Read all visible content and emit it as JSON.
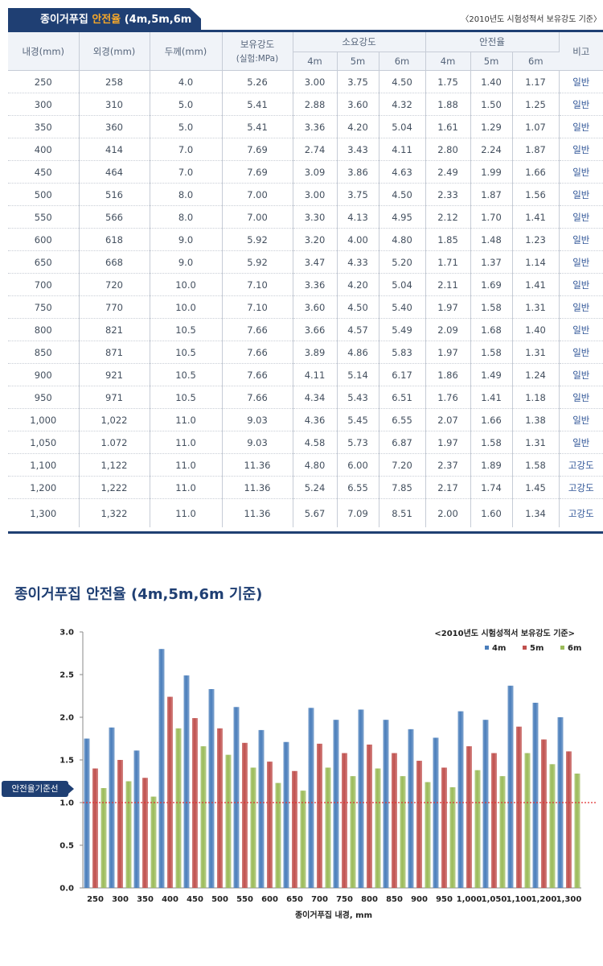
{
  "header": {
    "title_main": "종이거푸집 ",
    "title_highlight": "안전율",
    "title_suffix": " (4m,5m,6m 기준)",
    "note": "〈2010년도 시험성적서 보유강도 기준〉"
  },
  "table": {
    "headers": {
      "inner": "내경(mm)",
      "outer": "외경(mm)",
      "thickness": "두께(mm)",
      "strength": "보유강도",
      "strength_sub": "(실험:MPa)",
      "required": "소요강도",
      "safety": "안전율",
      "remark": "비고",
      "h4": "4m",
      "h5": "5m",
      "h6": "6m"
    },
    "rows": [
      [
        "250",
        "258",
        "4.0",
        "5.26",
        "3.00",
        "3.75",
        "4.50",
        "1.75",
        "1.40",
        "1.17",
        "일반"
      ],
      [
        "300",
        "310",
        "5.0",
        "5.41",
        "2.88",
        "3.60",
        "4.32",
        "1.88",
        "1.50",
        "1.25",
        "일반"
      ],
      [
        "350",
        "360",
        "5.0",
        "5.41",
        "3.36",
        "4.20",
        "5.04",
        "1.61",
        "1.29",
        "1.07",
        "일반"
      ],
      [
        "400",
        "414",
        "7.0",
        "7.69",
        "2.74",
        "3.43",
        "4.11",
        "2.80",
        "2.24",
        "1.87",
        "일반"
      ],
      [
        "450",
        "464",
        "7.0",
        "7.69",
        "3.09",
        "3.86",
        "4.63",
        "2.49",
        "1.99",
        "1.66",
        "일반"
      ],
      [
        "500",
        "516",
        "8.0",
        "7.00",
        "3.00",
        "3.75",
        "4.50",
        "2.33",
        "1.87",
        "1.56",
        "일반"
      ],
      [
        "550",
        "566",
        "8.0",
        "7.00",
        "3.30",
        "4.13",
        "4.95",
        "2.12",
        "1.70",
        "1.41",
        "일반"
      ],
      [
        "600",
        "618",
        "9.0",
        "5.92",
        "3.20",
        "4.00",
        "4.80",
        "1.85",
        "1.48",
        "1.23",
        "일반"
      ],
      [
        "650",
        "668",
        "9.0",
        "5.92",
        "3.47",
        "4.33",
        "5.20",
        "1.71",
        "1.37",
        "1.14",
        "일반"
      ],
      [
        "700",
        "720",
        "10.0",
        "7.10",
        "3.36",
        "4.20",
        "5.04",
        "2.11",
        "1.69",
        "1.41",
        "일반"
      ],
      [
        "750",
        "770",
        "10.0",
        "7.10",
        "3.60",
        "4.50",
        "5.40",
        "1.97",
        "1.58",
        "1.31",
        "일반"
      ],
      [
        "800",
        "821",
        "10.5",
        "7.66",
        "3.66",
        "4.57",
        "5.49",
        "2.09",
        "1.68",
        "1.40",
        "일반"
      ],
      [
        "850",
        "871",
        "10.5",
        "7.66",
        "3.89",
        "4.86",
        "5.83",
        "1.97",
        "1.58",
        "1.31",
        "일반"
      ],
      [
        "900",
        "921",
        "10.5",
        "7.66",
        "4.11",
        "5.14",
        "6.17",
        "1.86",
        "1.49",
        "1.24",
        "일반"
      ],
      [
        "950",
        "971",
        "10.5",
        "7.66",
        "4.34",
        "5.43",
        "6.51",
        "1.76",
        "1.41",
        "1.18",
        "일반"
      ],
      [
        "1,000",
        "1,022",
        "11.0",
        "9.03",
        "4.36",
        "5.45",
        "6.55",
        "2.07",
        "1.66",
        "1.38",
        "일반"
      ],
      [
        "1,050",
        "1.072",
        "11.0",
        "9.03",
        "4.58",
        "5.73",
        "6.87",
        "1.97",
        "1.58",
        "1.31",
        "일반"
      ],
      [
        "1,100",
        "1,122",
        "11.0",
        "11.36",
        "4.80",
        "6.00",
        "7.20",
        "2.37",
        "1.89",
        "1.58",
        "고강도"
      ],
      [
        "1,200",
        "1,222",
        "11.0",
        "11.36",
        "5.24",
        "6.55",
        "7.85",
        "2.17",
        "1.74",
        "1.45",
        "고강도"
      ],
      [
        "1,300",
        "1,322",
        "11.0",
        "11.36",
        "5.67",
        "7.09",
        "8.51",
        "2.00",
        "1.60",
        "1.34",
        "고강도"
      ]
    ]
  },
  "chart_section": {
    "title": "종이거푸집 안전율 (4m,5m,6m 기준)",
    "reference_label": "안전율기준선"
  },
  "chart_data": {
    "type": "bar",
    "title": "종이거푸집 안전율 (4m,5m,6m 기준)",
    "subtitle": "<2010년도 시험성적서 보유강도 기준>",
    "xlabel": "종이거푸집 내경, mm",
    "ylabel": "",
    "ylim": [
      0,
      3.0
    ],
    "yticks": [
      "0.0",
      "0.5",
      "1.0",
      "1.5",
      "2.0",
      "2.5",
      "3.0"
    ],
    "grid": false,
    "legend": "top-right",
    "reference_line": {
      "value": 1.0,
      "label": "안전율기준선",
      "color": "#e03030"
    },
    "categories": [
      "250",
      "300",
      "350",
      "400",
      "450",
      "500",
      "550",
      "600",
      "650",
      "700",
      "750",
      "800",
      "850",
      "900",
      "950",
      "1,000",
      "1,050",
      "1,100",
      "1,200",
      "1,300"
    ],
    "series": [
      {
        "name": "4m",
        "color": "#4a7ebb",
        "values": [
          1.75,
          1.88,
          1.61,
          2.8,
          2.49,
          2.33,
          2.12,
          1.85,
          1.71,
          2.11,
          1.97,
          2.09,
          1.97,
          1.86,
          1.76,
          2.07,
          1.97,
          2.37,
          2.17,
          2.0
        ]
      },
      {
        "name": "5m",
        "color": "#c0504d",
        "values": [
          1.4,
          1.5,
          1.29,
          2.24,
          1.99,
          1.87,
          1.7,
          1.48,
          1.37,
          1.69,
          1.58,
          1.68,
          1.58,
          1.49,
          1.41,
          1.66,
          1.58,
          1.89,
          1.74,
          1.6
        ]
      },
      {
        "name": "6m",
        "color": "#9bbb59",
        "values": [
          1.17,
          1.25,
          1.07,
          1.87,
          1.66,
          1.56,
          1.41,
          1.23,
          1.14,
          1.41,
          1.31,
          1.4,
          1.31,
          1.24,
          1.18,
          1.38,
          1.31,
          1.58,
          1.45,
          1.34
        ]
      }
    ]
  }
}
